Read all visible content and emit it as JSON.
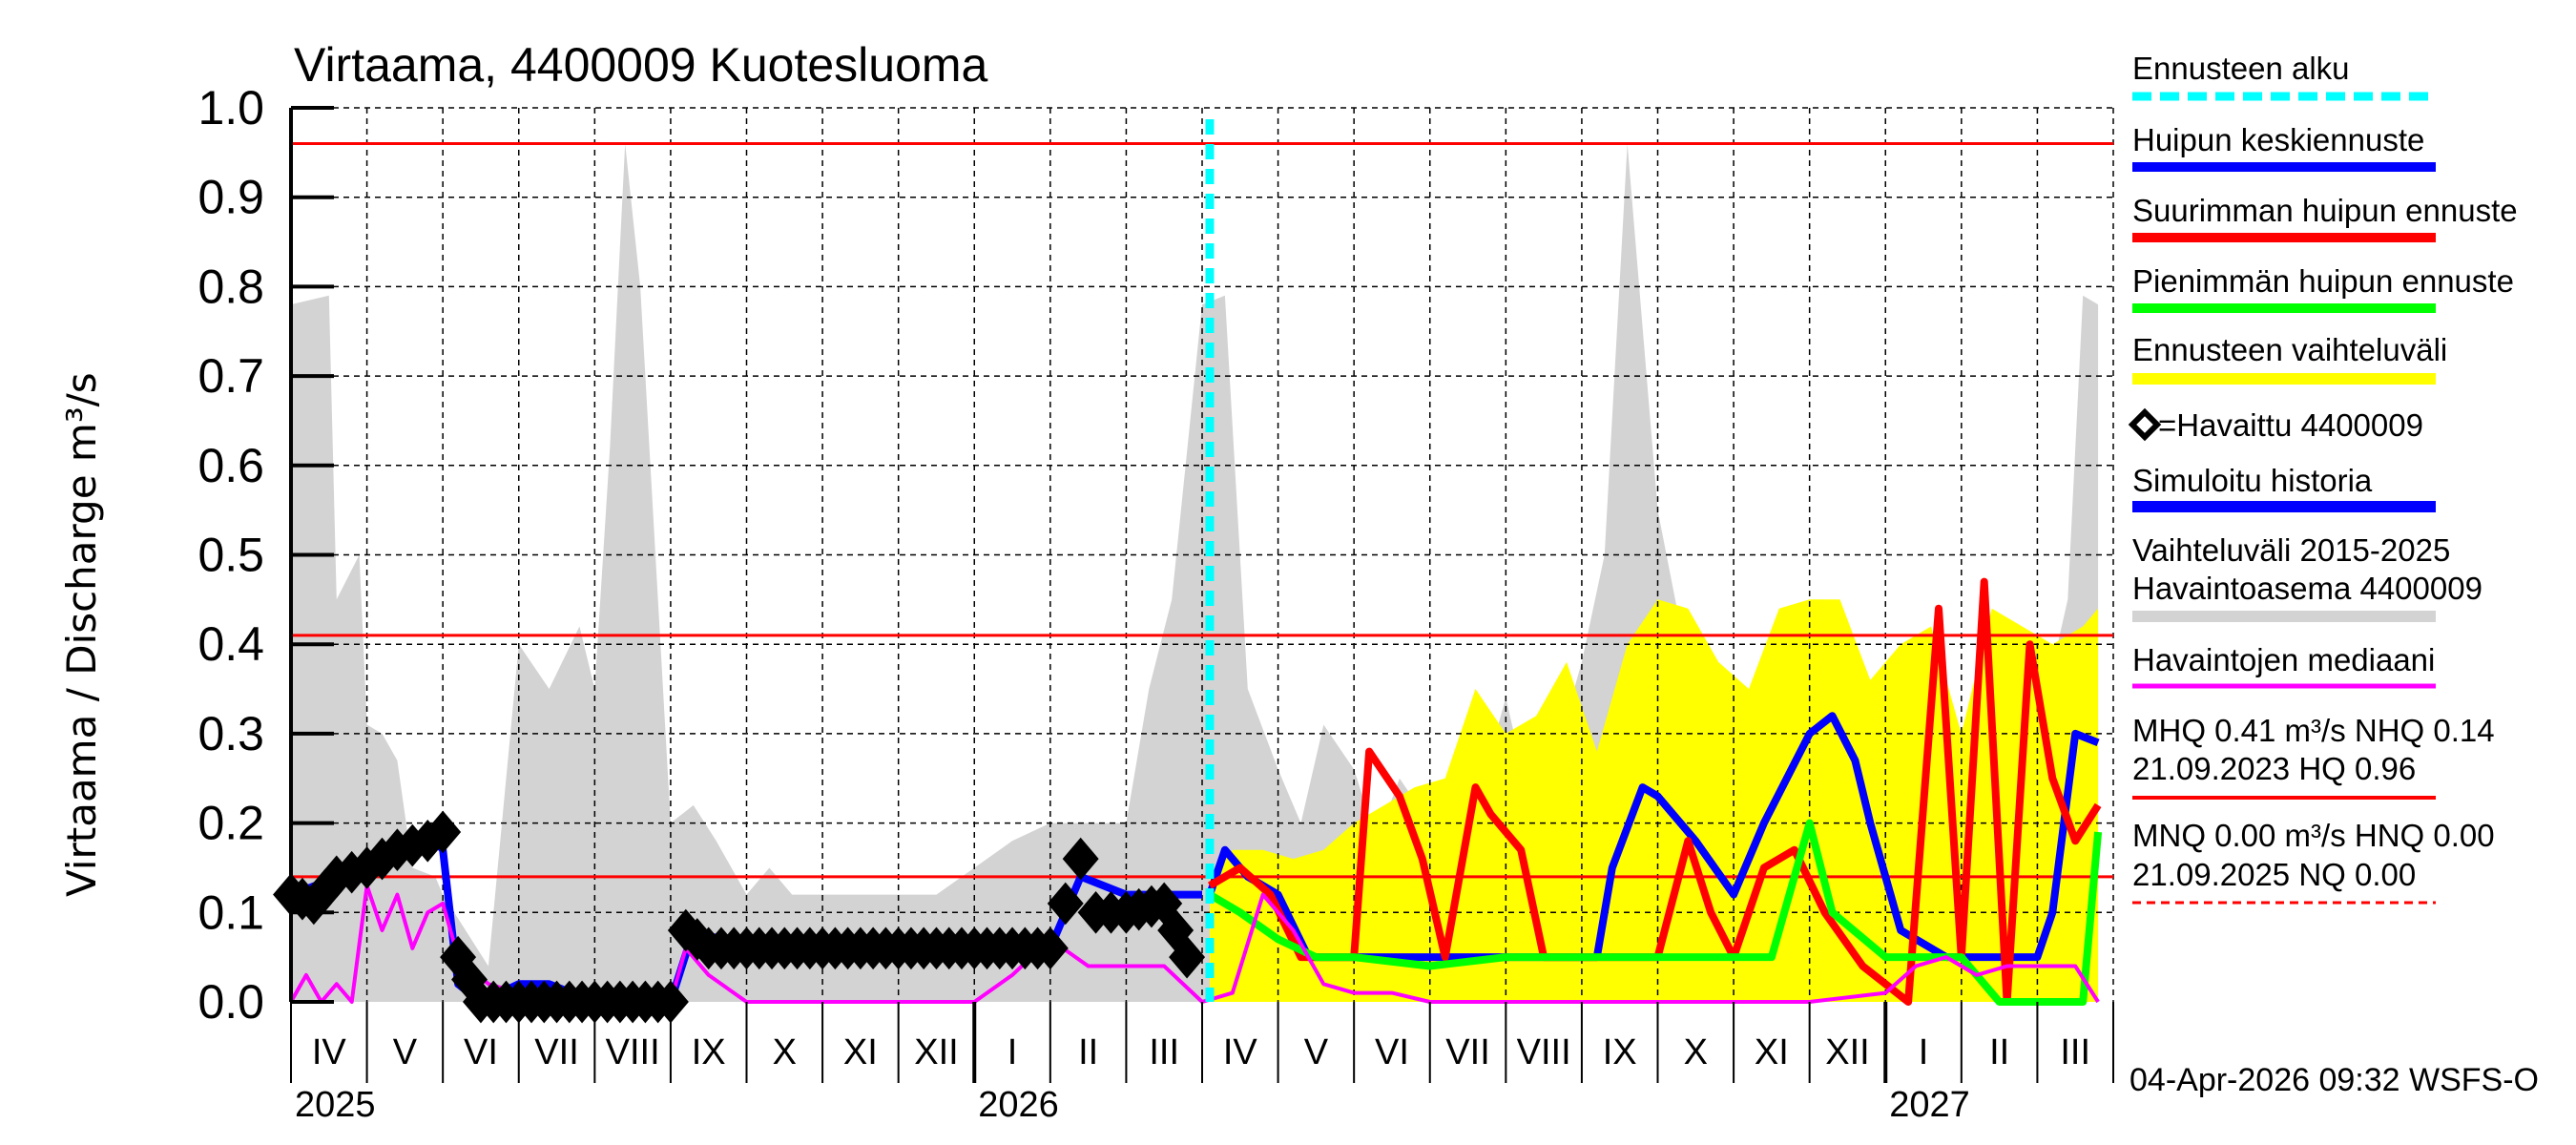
{
  "chart_data": {
    "type": "line",
    "title": "Virtaama, 4400009 Kuotesluoma",
    "ylabel": "Virtaama / Discharge    m³/s",
    "xlabel": "",
    "ylim": [
      0.0,
      1.0
    ],
    "yticks": [
      "0.0",
      "0.1",
      "0.2",
      "0.3",
      "0.4",
      "0.5",
      "0.6",
      "0.7",
      "0.8",
      "0.9",
      "1.0"
    ],
    "grid": true,
    "legend_position": "right",
    "months": [
      "IV",
      "V",
      "VI",
      "VII",
      "VIII",
      "IX",
      "X",
      "XI",
      "XII",
      "I",
      "II",
      "III",
      "IV",
      "V",
      "VI",
      "VII",
      "VIII",
      "IX",
      "X",
      "XI",
      "XII",
      "I",
      "II",
      "III"
    ],
    "years": [
      {
        "label": "2025",
        "month_index": 0
      },
      {
        "label": "2026",
        "month_index": 9
      },
      {
        "label": "2027",
        "month_index": 21
      }
    ],
    "forecast_start_month_index": 12.1,
    "reference_lines": [
      {
        "name": "HQ",
        "value": 0.96,
        "color": "#ff0000"
      },
      {
        "name": "MHQ",
        "value": 0.41,
        "color": "#ff0000"
      },
      {
        "name": "NHQ",
        "value": 0.14,
        "color": "#ff0000"
      }
    ],
    "series": [
      {
        "name": "Huipun keskiennuste",
        "color": "#0000ff",
        "x": [
          12.1,
          12.3,
          12.6,
          13.0,
          13.4,
          14.0,
          15.0,
          16.0,
          17.2,
          17.4,
          17.8,
          18.0,
          18.5,
          19.0,
          19.4,
          20.0,
          20.3,
          20.6,
          20.8,
          21.2,
          21.8,
          22.3,
          22.6,
          23.0,
          23.2,
          23.5,
          23.8
        ],
        "values": [
          0.12,
          0.17,
          0.14,
          0.12,
          0.05,
          0.05,
          0.05,
          0.05,
          0.05,
          0.15,
          0.24,
          0.23,
          0.18,
          0.12,
          0.2,
          0.3,
          0.32,
          0.27,
          0.2,
          0.08,
          0.05,
          0.05,
          0.05,
          0.05,
          0.1,
          0.3,
          0.29
        ]
      },
      {
        "name": "Suurimman huipun ennuste",
        "color": "#ff0000",
        "x": [
          12.1,
          12.5,
          12.9,
          13.3,
          14.0,
          14.2,
          14.6,
          14.9,
          15.2,
          15.6,
          15.8,
          16.2,
          16.5,
          17.0,
          17.6,
          18.0,
          18.4,
          18.7,
          19.0,
          19.4,
          19.8,
          20.2,
          20.7,
          21.3,
          21.7,
          22.0,
          22.3,
          22.6,
          22.9,
          23.2,
          23.5,
          23.8
        ],
        "values": [
          0.13,
          0.15,
          0.12,
          0.05,
          0.05,
          0.28,
          0.23,
          0.16,
          0.05,
          0.24,
          0.21,
          0.17,
          0.05,
          0.05,
          0.05,
          0.05,
          0.18,
          0.1,
          0.05,
          0.15,
          0.17,
          0.1,
          0.04,
          0.0,
          0.44,
          0.05,
          0.47,
          0.0,
          0.4,
          0.25,
          0.18,
          0.22
        ]
      },
      {
        "name": "Pienimmän huipun ennuste",
        "color": "#00ff00",
        "x": [
          12.1,
          12.5,
          13.0,
          13.5,
          14.0,
          15.0,
          16.0,
          17.0,
          18.0,
          19.0,
          19.5,
          20.0,
          20.3,
          21.0,
          22.0,
          22.5,
          23.0,
          23.6,
          23.8
        ],
        "values": [
          0.12,
          0.1,
          0.07,
          0.05,
          0.05,
          0.04,
          0.05,
          0.05,
          0.05,
          0.05,
          0.05,
          0.2,
          0.1,
          0.05,
          0.05,
          0.0,
          0.0,
          0.0,
          0.19
        ]
      },
      {
        "name": "Havaittu 4400009",
        "color": "#000000",
        "marker": "diamond",
        "x": [
          0.0,
          0.3,
          0.6,
          1.0,
          1.4,
          1.8,
          2.0,
          2.2,
          2.5,
          3.0,
          3.5,
          4.0,
          4.5,
          5.0,
          5.2,
          5.5,
          6.0,
          7.0,
          8.0,
          9.0,
          10.0,
          10.4,
          10.6,
          11.0,
          11.5,
          11.8,
          12.0
        ],
        "values": [
          0.12,
          0.11,
          0.14,
          0.15,
          0.17,
          0.18,
          0.19,
          0.05,
          0.0,
          0.0,
          0.0,
          0.0,
          0.0,
          0.0,
          0.08,
          0.06,
          0.06,
          0.06,
          0.06,
          0.06,
          0.06,
          0.16,
          0.1,
          0.1,
          0.11,
          0.05,
          0.06
        ]
      },
      {
        "name": "Simuloitu historia",
        "color": "#0000ff",
        "x": [
          0.0,
          1.9,
          2.0,
          2.2,
          2.5,
          3.0,
          3.4,
          4.0,
          5.0,
          5.3,
          6.0,
          9.0,
          10.0,
          10.4,
          11.0,
          12.0
        ],
        "values": [
          0.12,
          0.18,
          0.17,
          0.02,
          0.0,
          0.02,
          0.02,
          0.0,
          0.0,
          0.08,
          0.06,
          0.06,
          0.06,
          0.14,
          0.12,
          0.12
        ]
      },
      {
        "name": "Havaintojen mediaani",
        "color": "#ff00ff",
        "x": [
          0.0,
          0.2,
          0.4,
          0.6,
          0.8,
          1.0,
          1.2,
          1.4,
          1.6,
          1.8,
          2.0,
          2.2,
          2.6,
          3.0,
          3.5,
          4.0,
          5.0,
          5.2,
          5.5,
          6.0,
          6.5,
          7.0,
          8.0,
          9.0,
          9.5,
          10.0,
          10.5,
          11.0,
          11.5,
          12.0,
          12.4,
          12.8,
          13.2,
          13.6,
          14.0,
          14.5,
          15.0,
          16.0,
          17.0,
          18.0,
          19.0,
          20.0,
          21.0,
          21.4,
          21.8,
          22.2,
          22.6,
          23.0,
          23.5,
          23.8
        ],
        "values": [
          0.0,
          0.03,
          0.0,
          0.02,
          0.0,
          0.13,
          0.08,
          0.12,
          0.06,
          0.1,
          0.11,
          0.05,
          0.02,
          0.01,
          0.01,
          0.0,
          0.0,
          0.06,
          0.03,
          0.0,
          0.0,
          0.0,
          0.0,
          0.0,
          0.03,
          0.07,
          0.04,
          0.04,
          0.04,
          0.0,
          0.01,
          0.12,
          0.08,
          0.02,
          0.01,
          0.01,
          0.0,
          0.0,
          0.0,
          0.0,
          0.0,
          0.0,
          0.01,
          0.04,
          0.05,
          0.03,
          0.04,
          0.04,
          0.04,
          0.0
        ]
      },
      {
        "name": "Vaihteluväli 2015-2025 Havaintoasema 4400009",
        "color": "#d3d3d3",
        "type": "area",
        "x": [
          0.0,
          0.5,
          0.6,
          0.9,
          1.0,
          1.2,
          1.4,
          1.6,
          1.9,
          2.0,
          2.3,
          2.6,
          3.0,
          3.4,
          3.8,
          4.0,
          4.2,
          4.4,
          4.6,
          5.0,
          5.3,
          5.6,
          6.0,
          6.3,
          6.6,
          7.0,
          7.5,
          8.0,
          8.5,
          9.0,
          9.5,
          10.0,
          10.5,
          11.0,
          11.3,
          11.6,
          12.0,
          12.3,
          12.6,
          13.0,
          13.3,
          13.6,
          14.0,
          14.3,
          14.6,
          15.0,
          15.3,
          15.6,
          16.0,
          16.3,
          16.6,
          17.0,
          17.3,
          17.6,
          18.0,
          18.3,
          18.6,
          19.0,
          19.5,
          20.0,
          20.5,
          21.0,
          21.5,
          22.0,
          22.5,
          23.0,
          23.4,
          23.6,
          23.8
        ],
        "values": [
          0.78,
          0.79,
          0.45,
          0.5,
          0.31,
          0.3,
          0.27,
          0.15,
          0.14,
          0.12,
          0.08,
          0.04,
          0.4,
          0.35,
          0.42,
          0.35,
          0.62,
          0.96,
          0.8,
          0.2,
          0.22,
          0.18,
          0.12,
          0.15,
          0.12,
          0.12,
          0.12,
          0.12,
          0.12,
          0.15,
          0.18,
          0.2,
          0.2,
          0.2,
          0.35,
          0.45,
          0.78,
          0.79,
          0.35,
          0.26,
          0.2,
          0.31,
          0.26,
          0.18,
          0.25,
          0.2,
          0.15,
          0.22,
          0.34,
          0.23,
          0.26,
          0.38,
          0.5,
          0.96,
          0.55,
          0.42,
          0.3,
          0.22,
          0.2,
          0.18,
          0.17,
          0.2,
          0.2,
          0.25,
          0.25,
          0.3,
          0.45,
          0.79,
          0.78
        ]
      },
      {
        "name": "Ennusteen vaihteluväli",
        "color": "#ffff00",
        "type": "area",
        "x": [
          12.1,
          12.4,
          12.8,
          13.2,
          13.6,
          14.0,
          14.4,
          14.8,
          15.2,
          15.6,
          16.0,
          16.4,
          16.8,
          17.2,
          17.6,
          18.0,
          18.4,
          18.8,
          19.2,
          19.6,
          20.0,
          20.4,
          20.8,
          21.2,
          21.6,
          22.0,
          22.4,
          22.8,
          23.2,
          23.6,
          23.8
        ],
        "values": [
          0.14,
          0.17,
          0.17,
          0.16,
          0.17,
          0.2,
          0.22,
          0.24,
          0.25,
          0.35,
          0.3,
          0.32,
          0.38,
          0.28,
          0.4,
          0.45,
          0.44,
          0.38,
          0.35,
          0.44,
          0.45,
          0.45,
          0.36,
          0.4,
          0.42,
          0.3,
          0.44,
          0.42,
          0.4,
          0.42,
          0.44
        ]
      }
    ]
  },
  "title": "Virtaama, 4400009 Kuotesluoma",
  "yaxis": {
    "label": "Virtaama / Discharge    m³/s"
  },
  "legend": {
    "forecast_start": "Ennusteen alku",
    "mean_forecast": "Huipun keskiennuste",
    "max_forecast": "Suurimman huipun ennuste",
    "min_forecast": "Pienimmän huipun ennuste",
    "forecast_range": "Ennusteen vaihteluväli",
    "observed": "=Havaittu 4400009",
    "simulated": "Simuloitu historia",
    "range_line1": "Vaihteluväli 2015-2025",
    "range_line2": "Havaintoasema 4400009",
    "median": "Havaintojen mediaani",
    "mhq_line1": "MHQ 0.41 m³/s NHQ 0.14",
    "mhq_line2": "21.09.2023 HQ 0.96",
    "mnq_line1": "MNQ 0.00 m³/s HNQ 0.00",
    "mnq_line2": "21.09.2025 NQ 0.00"
  },
  "colors": {
    "forecast_start": "#00ffff",
    "mean_forecast": "#0000ff",
    "max_forecast": "#ff0000",
    "min_forecast": "#00ff00",
    "forecast_range": "#ffff00",
    "simulated": "#0000ff",
    "range": "#d3d3d3",
    "median": "#ff00ff",
    "hq_lines": "#ff0000"
  },
  "footer": {
    "timestamp": "04-Apr-2026 09:32 WSFS-O"
  }
}
